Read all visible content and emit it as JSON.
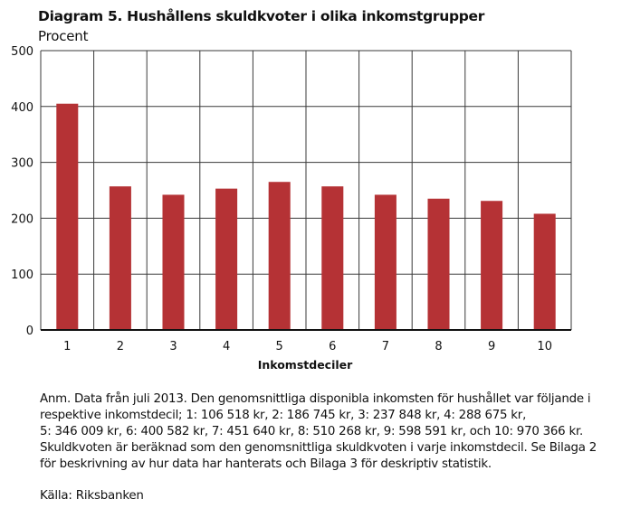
{
  "chart_data": {
    "type": "bar",
    "title": "Diagram 5. Hushållens skuldkvoter i olika inkomstgrupper",
    "subtitle": "Procent",
    "xlabel": "Inkomstdeciler",
    "ylabel": "",
    "categories": [
      "1",
      "2",
      "3",
      "4",
      "5",
      "6",
      "7",
      "8",
      "9",
      "10"
    ],
    "values": [
      405,
      257,
      242,
      253,
      265,
      257,
      242,
      235,
      231,
      208
    ],
    "ylim": [
      0,
      500
    ],
    "yticks": [
      0,
      100,
      200,
      300,
      400,
      500
    ],
    "grid": true,
    "bar_color": "#b53235",
    "legend": "none"
  },
  "note": {
    "lines": [
      "Anm. Data från juli 2013. Den genomsnittliga disponibla inkomsten för hushållet var följande i",
      "respektive inkomstdecil; 1: 106 518 kr, 2: 186 745 kr, 3: 237 848 kr, 4: 288 675 kr,",
      "5: 346 009 kr, 6: 400 582 kr, 7: 451 640 kr, 8: 510 268 kr, 9: 598 591 kr, och 10: 970 366 kr.",
      "Skuldkvoten är beräknad som den genomsnittliga skuldkvoten i varje inkomstdecil. Se Bilaga 2",
      "för beskrivning av hur data har hanterats och Bilaga 3 för deskriptiv statistik."
    ]
  },
  "source": "Källa: Riksbanken"
}
